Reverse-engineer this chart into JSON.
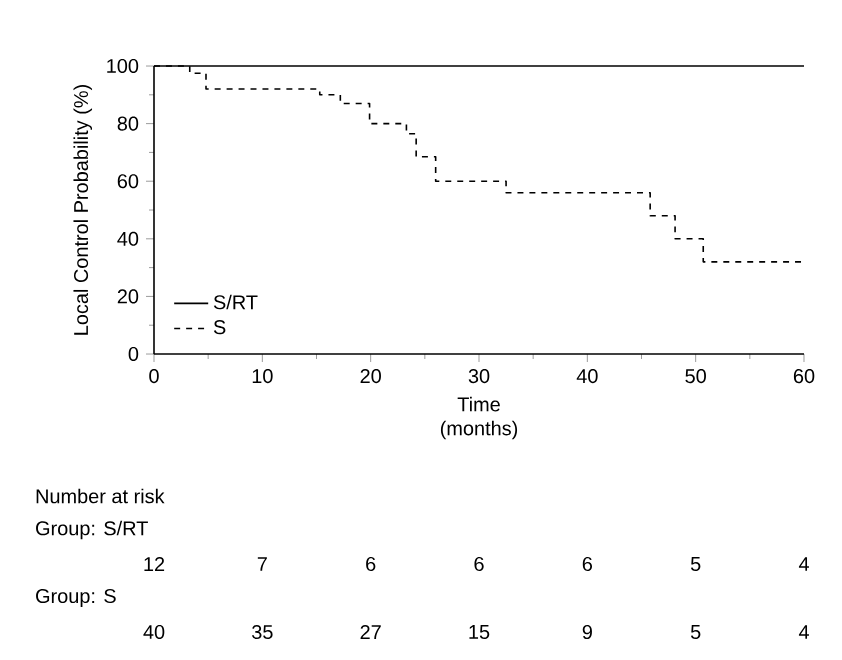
{
  "chart_data": {
    "type": "step",
    "xlabel": "Time (months)",
    "ylabel": "Local Control Probability (%)",
    "xlim": [
      0,
      60
    ],
    "ylim": [
      0,
      100
    ],
    "xticks": [
      0,
      10,
      20,
      30,
      40,
      50,
      60
    ],
    "yticks": [
      0,
      20,
      40,
      60,
      80,
      100
    ],
    "legend": "bottom left",
    "series": [
      {
        "name": "S/RT",
        "color": "#000000",
        "line_style": "solid",
        "x": [
          0,
          60
        ],
        "values": [
          100,
          100
        ]
      },
      {
        "name": "S",
        "color": "#000000",
        "line_style": "dashed",
        "x": [
          0,
          3.3,
          4.8,
          15.3,
          17.2,
          19.9,
          23.3,
          24.2,
          26,
          32.5,
          45.8,
          48.1,
          50.7,
          60
        ],
        "values": [
          100,
          97.5,
          92,
          90,
          87,
          80,
          76.5,
          68.5,
          60,
          56,
          48,
          40,
          32,
          32
        ]
      }
    ],
    "annotations": [
      "Number at risk",
      "Group: S/RT",
      "12",
      "7",
      "6",
      "6",
      "6",
      "5",
      "4",
      "Group: S",
      "40",
      "35",
      "27",
      "15",
      "9",
      "5",
      "4"
    ]
  }
}
